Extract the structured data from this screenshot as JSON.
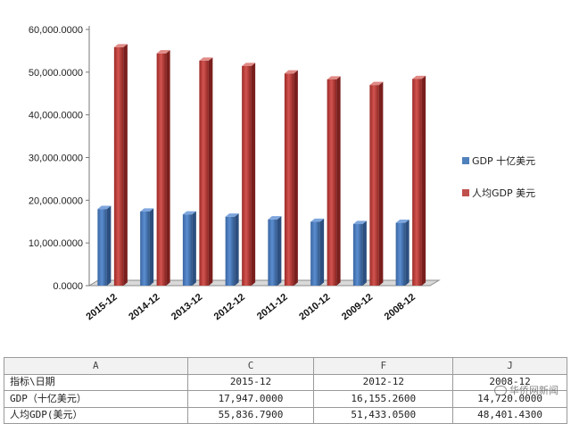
{
  "chart_data": {
    "type": "bar",
    "categories": [
      "2015-12",
      "2014-12",
      "2013-12",
      "2012-12",
      "2011-12",
      "2010-12",
      "2009-12",
      "2008-12"
    ],
    "series": [
      {
        "name": "GDP 十亿美元",
        "color": "#4F81BD",
        "values": [
          17947,
          17350,
          16690,
          16155,
          15520,
          14960,
          14420,
          14720
        ]
      },
      {
        "name": "人均GDP 美元",
        "color": "#C0504D",
        "values": [
          55837,
          54400,
          52700,
          51433,
          49700,
          48300,
          47000,
          48400
        ]
      }
    ],
    "y_ticks": [
      "0.0000",
      "10,000.0000",
      "20,000.0000",
      "30,000.0000",
      "40,000.0000",
      "50,000.0000",
      "60,000.0000"
    ],
    "ylim": [
      0,
      60000
    ],
    "style": "3d-clustered-column",
    "grid": false,
    "legend_position": "right"
  },
  "table": {
    "column_letters": [
      "A",
      "C",
      "F",
      "J"
    ],
    "rows": [
      [
        "指标\\日期",
        "2015-12",
        "2012-12",
        "2008-12"
      ],
      [
        "GDP（十亿美元）",
        "17,947.0000",
        "16,155.2600",
        "14,720.0000"
      ],
      [
        "人均GDP(美元）",
        "55,836.7900",
        "51,433.0500",
        "48,401.4300"
      ]
    ]
  },
  "watermark": {
    "text": "华侨网新闻",
    "icon": "wechat-icon"
  }
}
